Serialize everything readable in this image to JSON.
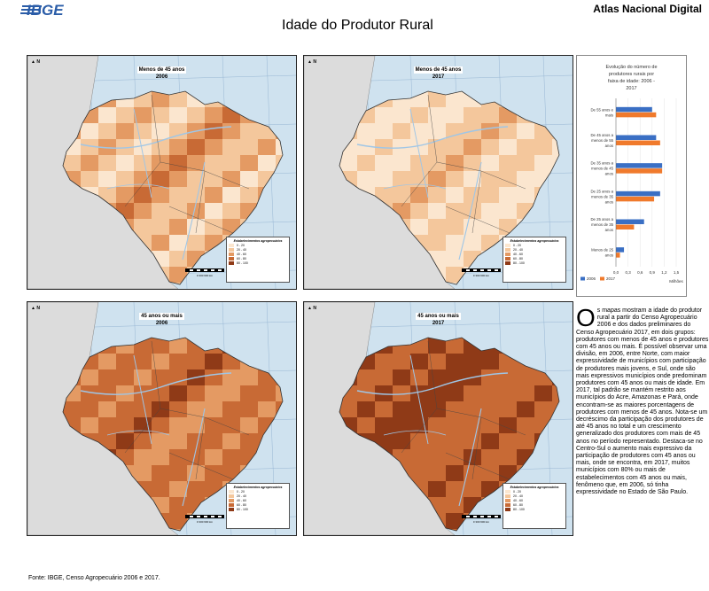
{
  "header": {
    "logo_text": "IBGE",
    "atlas_title": "Atlas Nacional Digital",
    "page_title": "Idade do Produtor Rural"
  },
  "maps": [
    {
      "line1": "Menos de 45 anos",
      "line2": "2006",
      "shade": "light"
    },
    {
      "line1": "Menos de 45 anos",
      "line2": "2017",
      "shade": "lighter"
    },
    {
      "line1": "45 anos ou mais",
      "line2": "2006",
      "shade": "dark"
    },
    {
      "line1": "45 anos ou mais",
      "line2": "2017",
      "shade": "darker"
    }
  ],
  "legend_title": "Estabelecimentos agropecuários",
  "legend_classes": [
    "0 - 20",
    "20 - 40",
    "40 - 60",
    "60 - 80",
    "80 - 100"
  ],
  "legend_colors": [
    "#fbe6cf",
    "#f4c79c",
    "#e49a63",
    "#c86a35",
    "#8f3a17"
  ],
  "scale_label": "0   300   600 km",
  "north_label": "N",
  "chart_data": {
    "type": "bar",
    "orientation": "horizontal",
    "title": "Evolução do número de produtores rurais por faixa de idade: 2006 - 2017",
    "categories": [
      "De 55 anos e mais",
      "De 45 anos a menos de 55 anos",
      "De 35 anos a menos de 45 anos",
      "De 25 anos a menos de 35 anos",
      "De 25 anos a menos de 35 anos",
      "Menos de 25 anos"
    ],
    "category_labels": [
      "De 55 anos e mais",
      "De 45 anos a menos de 55 anos",
      "De 35 anos a menos de 45 anos",
      "De 25 anos a menos de 35 anos",
      "De 25 anos a menos de 35 anos",
      "Menos de 25 anos"
    ],
    "series": [
      {
        "name": "2006",
        "color": "#3a6fc4",
        "values": [
          0.9,
          1.0,
          1.15,
          1.1,
          0.7,
          0.2
        ]
      },
      {
        "name": "2017",
        "color": "#f07a2c",
        "values": [
          1.0,
          1.1,
          1.15,
          0.95,
          0.45,
          0.1
        ]
      }
    ],
    "xticks": [
      "0,0",
      "0,3",
      "0,6",
      "0,9",
      "1,2",
      "1,5"
    ],
    "xlim": [
      0,
      1.5
    ],
    "xlabel": "Milhões",
    "legend_position": "bottom-left"
  },
  "description": {
    "dropcap": "O",
    "body": "s mapas mostram a idade do produtor rural a partir do Censo Agropecuário 2006 e dos dados preliminares do Censo Agropecuário 2017, em dois grupos: produtores com menos de 45 anos e produtores com 45 anos ou mais. É possível observar uma divisão, em 2006, entre Norte, com maior expressividade de municípios com participação de produtores mais jovens, e Sul, onde são mais expressivos municípios onde predominam produtores com 45 anos ou mais de idade. Em 2017, tal padrão se mantém restrito aos municípios do Acre, Amazonas e Pará, onde encontram-se as maiores porcentagens de produtores com menos de 45 anos. Nota-se um decréscimo da participação dos produtores de até 45 anos no total e um crescimento generalizado dos produtores com mais de 45 anos no período representado. Destaca-se no Centro-Sul o aumento mais expressivo da participação de produtores com 45 anos ou mais, onde se encontra, em 2017, muitos municípios com 80% ou mais de estabelecimentos com 45 anos ou mais, fenômeno que, em 2006, só tinha expressividade no Estado de São Paulo."
  },
  "source": "Fonte: IBGE, Censo Agropecuário 2006 e 2017."
}
